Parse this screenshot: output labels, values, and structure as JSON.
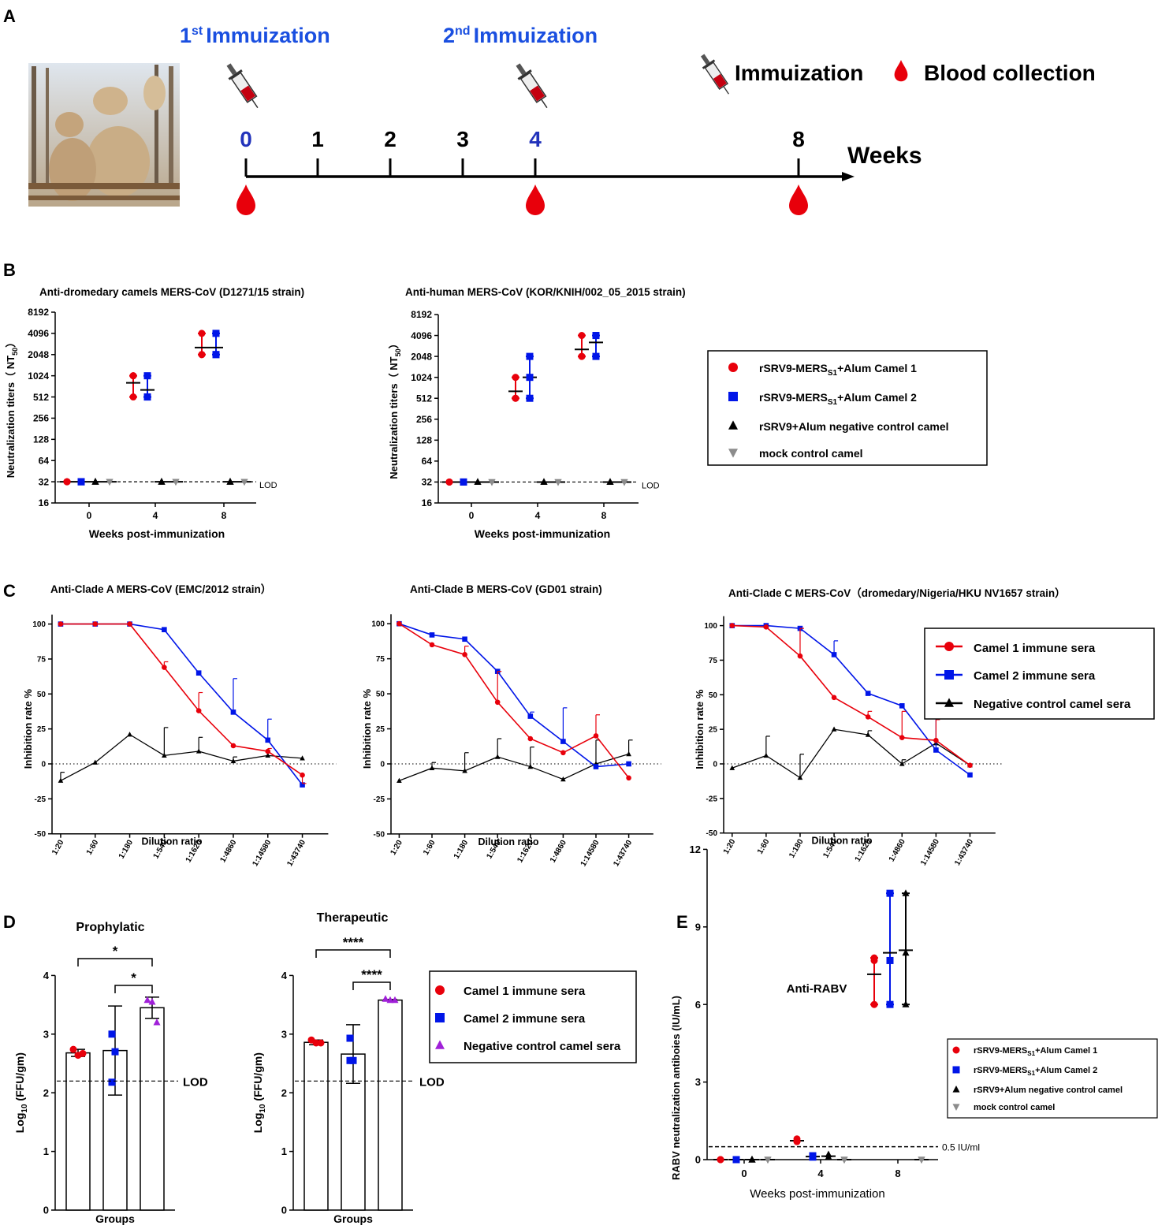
{
  "colors": {
    "red": "#e8000b",
    "blue": "#0015e8",
    "black": "#000000",
    "grey": "#8c8c8c",
    "purple": "#a020d8",
    "timeline_blue": "#2233bb",
    "title_blue": "#1a4fe0"
  },
  "panel_letters": {
    "a": "A",
    "b": "B",
    "c": "C",
    "d": "D",
    "e": "E"
  },
  "panelA": {
    "title1": "1st Immuization",
    "title1_main": "Immuization",
    "title1_sup": "st",
    "title1_num": "1",
    "title2_num": "2",
    "title2_sup": "nd",
    "title2_main": "Immuization",
    "weeks_label": "Weeks",
    "ticks": [
      {
        "week": 0,
        "label": "0",
        "color": "#2233bb",
        "immunization": true,
        "blood": true
      },
      {
        "week": 1,
        "label": "1",
        "color": "#000000",
        "immunization": false,
        "blood": false
      },
      {
        "week": 2,
        "label": "2",
        "color": "#000000",
        "immunization": false,
        "blood": false
      },
      {
        "week": 3,
        "label": "3",
        "color": "#000000",
        "immunization": false,
        "blood": false
      },
      {
        "week": 4,
        "label": "4",
        "color": "#2233bb",
        "immunization": true,
        "blood": true
      },
      {
        "week": 8,
        "label": "8",
        "color": "#000000",
        "immunization": false,
        "blood": true
      }
    ],
    "legend_immunization": "Immuization",
    "legend_blood": "Blood collection"
  },
  "chart_data": [
    {
      "id": "B1",
      "type": "scatter",
      "title": "Anti-dromedary camels MERS-CoV (D1271/15 strain)",
      "xlabel": "Weeks post-immunization",
      "ylabel": "Neutralization titers（ NT50）",
      "y_scale": "log2",
      "ylim": [
        16,
        8192
      ],
      "yticks": [
        "8192",
        "4096",
        "2048",
        "1024",
        "512",
        "256",
        "128",
        "64",
        "32",
        "16"
      ],
      "xticks": [
        "0",
        "4",
        "8"
      ],
      "lod_label": "LOD",
      "lod": 32,
      "series": [
        {
          "name": "rSRV9-MERSS1+Alum Camel 1",
          "marker": "circle",
          "values": {
            "0": [
              32,
              32,
              32
            ],
            "4": [
              1024,
              512,
              1024
            ],
            "8": [
              4096,
              2048,
              2048
            ]
          }
        },
        {
          "name": "rSRV9-MERSS1+Alum Camel 2",
          "marker": "square",
          "values": {
            "0": [
              32,
              32,
              32
            ],
            "4": [
              1024,
              512,
              512
            ],
            "8": [
              4096,
              2048,
              2048
            ]
          }
        },
        {
          "name": "rSRV9+Alum negative control camel",
          "marker": "triangle",
          "values": {
            "0": [
              32,
              32,
              32
            ],
            "4": [
              32,
              32,
              32
            ],
            "8": [
              32,
              32,
              32
            ]
          }
        },
        {
          "name": "mock control camel",
          "marker": "triangle-down",
          "values": {
            "0": [
              32,
              32,
              32
            ],
            "4": [
              32,
              32,
              32
            ],
            "8": [
              32,
              32,
              32
            ]
          }
        }
      ]
    },
    {
      "id": "B2",
      "type": "scatter",
      "title": "Anti-human MERS-CoV (KOR/KNIH/002_05_2015 strain)",
      "xlabel": "Weeks post-immunization",
      "ylabel": "Neutralization titers（ NT50）",
      "y_scale": "log2",
      "ylim": [
        16,
        8192
      ],
      "yticks": [
        "8192",
        "4096",
        "2048",
        "1024",
        "512",
        "256",
        "128",
        "64",
        "32",
        "16"
      ],
      "xticks": [
        "0",
        "4",
        "8"
      ],
      "lod_label": "LOD",
      "lod": 32,
      "series": [
        {
          "name": "rSRV9-MERSS1+Alum Camel 1",
          "marker": "circle",
          "values": {
            "0": [
              32,
              32,
              32
            ],
            "4": [
              1024,
              512,
              512
            ],
            "8": [
              4096,
              2048,
              2048
            ]
          }
        },
        {
          "name": "rSRV9-MERSS1+Alum Camel 2",
          "marker": "square",
          "values": {
            "0": [
              32,
              32,
              32
            ],
            "4": [
              2048,
              1024,
              512
            ],
            "8": [
              4096,
              4096,
              2048
            ]
          }
        },
        {
          "name": "rSRV9+Alum negative control camel",
          "marker": "triangle",
          "values": {
            "0": [
              32,
              32,
              32
            ],
            "4": [
              32,
              32,
              32
            ],
            "8": [
              32,
              32,
              32
            ]
          }
        },
        {
          "name": "mock control camel",
          "marker": "triangle-down",
          "values": {
            "0": [
              32,
              32,
              32
            ],
            "4": [
              32,
              32,
              32
            ],
            "8": [
              32,
              32,
              32
            ]
          }
        }
      ],
      "legend": [
        "rSRV9-MERS",
        "S1",
        "+Alum Camel 1",
        "+Alum Camel 2",
        "rSRV9+Alum  negative control camel",
        "mock control camel"
      ]
    },
    {
      "id": "C1",
      "type": "line",
      "title": "Anti-Clade A MERS-CoV (EMC/2012 strain）",
      "xlabel": "Dilution ratio",
      "ylabel": "Inhibition rate %",
      "categories": [
        "1:20",
        "1:60",
        "1:180",
        "1:540",
        "1:1620",
        "1:4860",
        "1:14580",
        "1:43740"
      ],
      "ylim": [
        -50,
        100
      ],
      "yticks": [
        "100",
        "75",
        "50",
        "25",
        "0",
        "-25",
        "-50"
      ],
      "series": [
        {
          "name": "Camel 1 immune sera",
          "marker": "circle",
          "values": [
            100,
            100,
            100,
            69,
            38,
            13,
            9,
            -8
          ],
          "errors": [
            0,
            0,
            0,
            4,
            13,
            0,
            2,
            6
          ]
        },
        {
          "name": "Camel 2 immune sera",
          "marker": "square",
          "values": [
            100,
            100,
            100,
            96,
            65,
            37,
            17,
            -15
          ],
          "errors": [
            0,
            0,
            0,
            0,
            0,
            24,
            15,
            0
          ]
        },
        {
          "name": "Negative control camel sera",
          "marker": "triangle",
          "values": [
            -12,
            1,
            21,
            6,
            9,
            2,
            6,
            4
          ],
          "errors": [
            6,
            0,
            0,
            20,
            10,
            3,
            0,
            0
          ]
        }
      ]
    },
    {
      "id": "C2",
      "type": "line",
      "title": "Anti-Clade B MERS-CoV (GD01 strain)",
      "xlabel": "Dilution ratio",
      "ylabel": "Inhibition rate %",
      "categories": [
        "1:20",
        "1:60",
        "1:180",
        "1:540",
        "1:1620",
        "1:4860",
        "1:14580",
        "1:43740"
      ],
      "ylim": [
        -50,
        100
      ],
      "yticks": [
        "100",
        "75",
        "50",
        "25",
        "0",
        "-25",
        "-50"
      ],
      "series": [
        {
          "name": "Camel 1 immune sera",
          "marker": "circle",
          "values": [
            100,
            85,
            78,
            44,
            18,
            8,
            20,
            -10
          ],
          "errors": [
            0,
            0,
            6,
            22,
            0,
            0,
            15,
            0
          ]
        },
        {
          "name": "Camel 2 immune sera",
          "marker": "square",
          "values": [
            100,
            92,
            89,
            66,
            34,
            16,
            -2,
            0
          ],
          "errors": [
            0,
            0,
            0,
            0,
            3,
            24,
            0,
            0
          ]
        },
        {
          "name": "Negative control camel sera",
          "marker": "triangle",
          "values": [
            -12,
            -3,
            -5,
            5,
            -2,
            -11,
            0,
            7
          ],
          "errors": [
            0,
            4,
            13,
            13,
            14,
            0,
            17,
            10
          ]
        }
      ]
    },
    {
      "id": "C3",
      "type": "line",
      "title": "Anti-Clade C MERS-CoV（dromedary/Nigeria/HKU NV1657 strain）",
      "xlabel": "Dilution ratio",
      "ylabel": "Inhibition rate %",
      "categories": [
        "1:20",
        "1:60",
        "1:180",
        "1:540",
        "1:1620",
        "1:4860",
        "1:14580",
        "1:43740"
      ],
      "ylim": [
        -50,
        100
      ],
      "yticks": [
        "100",
        "75",
        "50",
        "25",
        "0",
        "-25",
        "-50"
      ],
      "series": [
        {
          "name": "Camel 1 immune sera",
          "marker": "circle",
          "values": [
            100,
            99,
            78,
            48,
            34,
            19,
            17,
            -1
          ],
          "errors": [
            0,
            0,
            20,
            0,
            4,
            19,
            15,
            0
          ]
        },
        {
          "name": "Camel 2 immune sera",
          "marker": "square",
          "values": [
            100,
            100,
            98,
            79,
            51,
            42,
            10,
            -8
          ],
          "errors": [
            0,
            0,
            0,
            10,
            0,
            0,
            26,
            0
          ]
        },
        {
          "name": "Negative control camel sera",
          "marker": "triangle",
          "values": [
            -3,
            6,
            -10,
            25,
            21,
            0,
            15,
            -1
          ],
          "errors": [
            0,
            14,
            17,
            0,
            3,
            3,
            0,
            0
          ]
        }
      ],
      "legend": [
        "Camel 1 immune sera",
        "Camel 2 immune sera",
        "Negative control camel sera"
      ]
    },
    {
      "id": "D1",
      "type": "bar",
      "title": "Prophylatic",
      "xlabel": "Groups",
      "ylabel": "Log10 (FFU/gm)",
      "ylim": [
        0,
        4
      ],
      "yticks": [
        "4",
        "3",
        "2",
        "1",
        "0"
      ],
      "lod_label": "LOD",
      "lod": 2.2,
      "categories": [
        "Camel 1 immune sera",
        "Camel 2 immune sera",
        "Negative control camel sera"
      ],
      "values": [
        2.68,
        2.72,
        3.45
      ],
      "errors": [
        0.06,
        0.76,
        0.18
      ],
      "points": [
        [
          2.74,
          2.64,
          2.67
        ],
        [
          3.0,
          2.7,
          2.18
        ],
        [
          3.58,
          3.55,
          3.2
        ]
      ],
      "significance": [
        "*",
        "*"
      ]
    },
    {
      "id": "D2",
      "type": "bar",
      "title": "Therapeutic",
      "xlabel": "Groups",
      "ylabel": "Log10 (FFU/gm)",
      "ylim": [
        0,
        4
      ],
      "yticks": [
        "4",
        "3",
        "2",
        "1",
        "0"
      ],
      "lod_label": "LOD",
      "lod": 2.2,
      "categories": [
        "Camel 1 immune sera",
        "Camel 2 immune sera",
        "Negative control camel sera"
      ],
      "values": [
        2.86,
        2.66,
        3.58
      ],
      "errors": [
        0.04,
        0.5,
        0.01
      ],
      "points": [
        [
          2.9,
          2.85,
          2.85
        ],
        [
          2.93,
          2.55,
          2.55
        ],
        [
          3.6,
          3.58,
          3.58
        ]
      ],
      "significance": [
        "****",
        "****"
      ],
      "legend": [
        "Camel 1 immune sera",
        "Camel 2 immune sera",
        "Negative control camel sera"
      ]
    },
    {
      "id": "E",
      "type": "scatter",
      "title": "Anti-RABV",
      "xlabel": "Weeks post-immunization",
      "ylabel": "RABV neutralization antiboies (IU/mL)",
      "ylim": [
        0,
        12
      ],
      "yticks": [
        "12",
        "9",
        "6",
        "3",
        "0"
      ],
      "xticks": [
        "0",
        "4",
        "8"
      ],
      "lod_label": "0.5 IU/ml",
      "lod": 0.5,
      "series": [
        {
          "name": "rSRV9-MERSS1+Alum Camel 1",
          "marker": "circle",
          "values": {
            "0": [
              0,
              0,
              0
            ],
            "4": [
              0.8,
              0.7,
              0.7
            ],
            "8": [
              7.8,
              7.7,
              6.0
            ]
          }
        },
        {
          "name": "rSRV9-MERSS1+Alum Camel 2",
          "marker": "square",
          "values": {
            "0": [
              0,
              0,
              0
            ],
            "4": [
              0.15,
              0.1,
              0.1
            ],
            "8": [
              10.3,
              7.7,
              6.0
            ]
          }
        },
        {
          "name": "rSRV9+Alum negative control camel",
          "marker": "triangle",
          "values": {
            "0": [
              0,
              0,
              0
            ],
            "4": [
              0.2,
              0.1,
              0.1
            ],
            "8": [
              10.3,
              8.0,
              6.0
            ]
          }
        },
        {
          "name": "mock control camel",
          "marker": "triangle-down",
          "values": {
            "0": [
              0,
              0,
              0
            ],
            "4": [
              0,
              0,
              0
            ],
            "8": [
              0,
              0,
              0
            ]
          }
        }
      ],
      "legend": [
        "rSRV9-MERS",
        "S1",
        "+Alum Camel 1",
        "+Alum Camel 2",
        "rSRV9+Alum  negative control camel",
        "mock control camel"
      ]
    }
  ]
}
